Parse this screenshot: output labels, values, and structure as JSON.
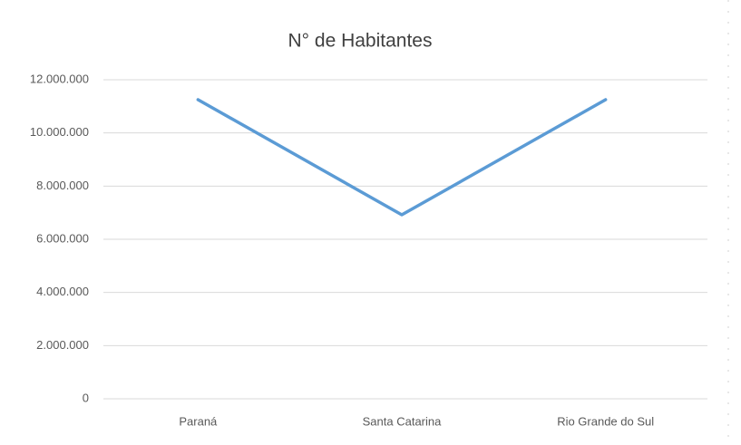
{
  "chart_data": {
    "type": "line",
    "title": "N° de Habitantes",
    "categories": [
      "Paraná",
      "Santa Catarina",
      "Rio Grande do Sul"
    ],
    "series": [
      {
        "name": "N° de Habitantes",
        "color": "#5b9bd5",
        "values": [
          11250000,
          6920000,
          11250000
        ]
      }
    ],
    "ylim": [
      0,
      12000000
    ],
    "yticks": [
      0,
      {
        "value": 2000000,
        "label": "2.000.000"
      },
      {
        "value": 4000000,
        "label": "4.000.000"
      },
      {
        "value": 6000000,
        "label": "6.000.000"
      },
      {
        "value": 8000000,
        "label": "8.000.000"
      },
      {
        "value": 10000000,
        "label": "10.000.000"
      },
      {
        "value": 12000000,
        "label": "12.000.000"
      }
    ],
    "grid": true
  }
}
